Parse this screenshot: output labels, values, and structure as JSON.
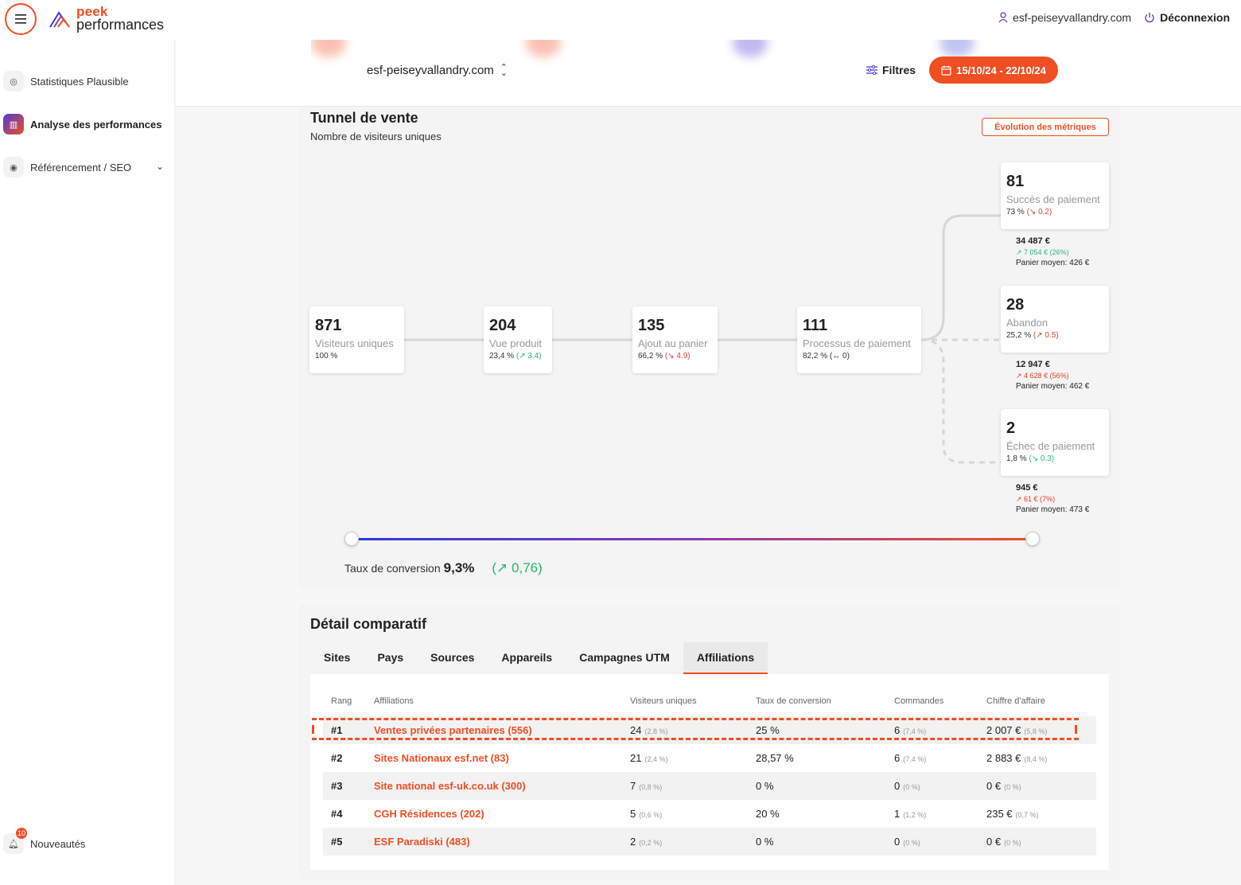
{
  "header": {
    "logo_top": "peek",
    "logo_bottom": "performances",
    "site": "esf-peiseyvallandry.com",
    "logout": "Déconnexion"
  },
  "sidebar": {
    "items": [
      {
        "label": "Statistiques Plausible"
      },
      {
        "label": "Analyse des performances"
      },
      {
        "label": "Référencement / SEO"
      }
    ],
    "news": {
      "label": "Nouveautés",
      "badge": "10"
    }
  },
  "toolbar": {
    "site_select": "esf-peiseyvallandry.com",
    "filters": "Filtres",
    "date_range": "15/10/24 - 22/10/24"
  },
  "funnel": {
    "title": "Tunnel de vente",
    "subtitle": "Nombre de visiteurs uniques",
    "evolution_button": "Évolution des métriques",
    "steps": [
      {
        "value": "871",
        "label": "Visiteurs uniques",
        "pct": "100 %",
        "delta": "",
        "trend": "none"
      },
      {
        "value": "204",
        "label": "Vue produit",
        "pct": "23,4 %",
        "delta": "(↗ 3.4)",
        "trend": "up"
      },
      {
        "value": "135",
        "label": "Ajout au panier",
        "pct": "66,2 %",
        "delta": "(↘ 4.9)",
        "trend": "down"
      },
      {
        "value": "111",
        "label": "Processus de paiement",
        "pct": "82,2 %",
        "delta": "(↔ 0)",
        "trend": "neutral"
      }
    ],
    "outcomes": [
      {
        "value": "81",
        "label": "Succès de paiement",
        "pct": "73 %",
        "delta": "(↘ 0.2)",
        "trend": "down",
        "amount": "34 487 €",
        "amount_delta": "↗ 7 054 €",
        "amount_delta_pct": "(26%)",
        "amount_trend": "up",
        "avg": "Panier moyen: 426 €"
      },
      {
        "value": "28",
        "label": "Abandon",
        "pct": "25,2 %",
        "delta": "(↗ 0.5)",
        "trend": "down",
        "amount": "12 947 €",
        "amount_delta": "↗ 4 628 €",
        "amount_delta_pct": "(56%)",
        "amount_trend": "down",
        "avg": "Panier moyen: 462 €"
      },
      {
        "value": "2",
        "label": "Échec de paiement",
        "pct": "1,8 %",
        "delta": "(↘ 0.3)",
        "trend": "up",
        "amount": "945 €",
        "amount_delta": "↗ 61 €",
        "amount_delta_pct": "(7%)",
        "amount_trend": "down",
        "avg": "Panier moyen: 473 €"
      }
    ],
    "conversion_label": "Taux de conversion",
    "conversion_rate": "9,3%",
    "conversion_delta": "(↗ 0,76)"
  },
  "detail": {
    "title": "Détail comparatif",
    "tabs": [
      "Sites",
      "Pays",
      "Sources",
      "Appareils",
      "Campagnes UTM",
      "Affiliations"
    ],
    "active_tab": "Affiliations",
    "columns": [
      "Rang",
      "Affiliations",
      "Visiteurs uniques",
      "Taux de conversion",
      "Commandes",
      "Chiffre d'affaire"
    ],
    "rows": [
      {
        "rank": "#1",
        "name": "Ventes privées partenaires (556)",
        "visitors": "24",
        "visitors_pct": "(2,8 %)",
        "conversion": "25 %",
        "orders": "6",
        "orders_pct": "(7,4 %)",
        "revenue": "2 007 €",
        "revenue_pct": "(5,8 %)"
      },
      {
        "rank": "#2",
        "name": "Sites Nationaux esf.net (83)",
        "visitors": "21",
        "visitors_pct": "(2,4 %)",
        "conversion": "28,57 %",
        "orders": "6",
        "orders_pct": "(7,4 %)",
        "revenue": "2 883 €",
        "revenue_pct": "(8,4 %)"
      },
      {
        "rank": "#3",
        "name": "Site national esf-uk.co.uk (300)",
        "visitors": "7",
        "visitors_pct": "(0,8 %)",
        "conversion": "0 %",
        "orders": "0",
        "orders_pct": "(0 %)",
        "revenue": "0 €",
        "revenue_pct": "(0 %)"
      },
      {
        "rank": "#4",
        "name": "CGH Résidences (202)",
        "visitors": "5",
        "visitors_pct": "(0,6 %)",
        "conversion": "20 %",
        "orders": "1",
        "orders_pct": "(1,2 %)",
        "revenue": "235 €",
        "revenue_pct": "(0,7 %)"
      },
      {
        "rank": "#5",
        "name": "ESF Paradiski (483)",
        "visitors": "2",
        "visitors_pct": "(0,2 %)",
        "conversion": "0 %",
        "orders": "0",
        "orders_pct": "(0 %)",
        "revenue": "0 €",
        "revenue_pct": "(0 %)"
      }
    ]
  },
  "colors": {
    "accent": "#f04e23",
    "up": "#2bb673",
    "down": "#e0402a",
    "slider_start": "#2a39e0"
  }
}
